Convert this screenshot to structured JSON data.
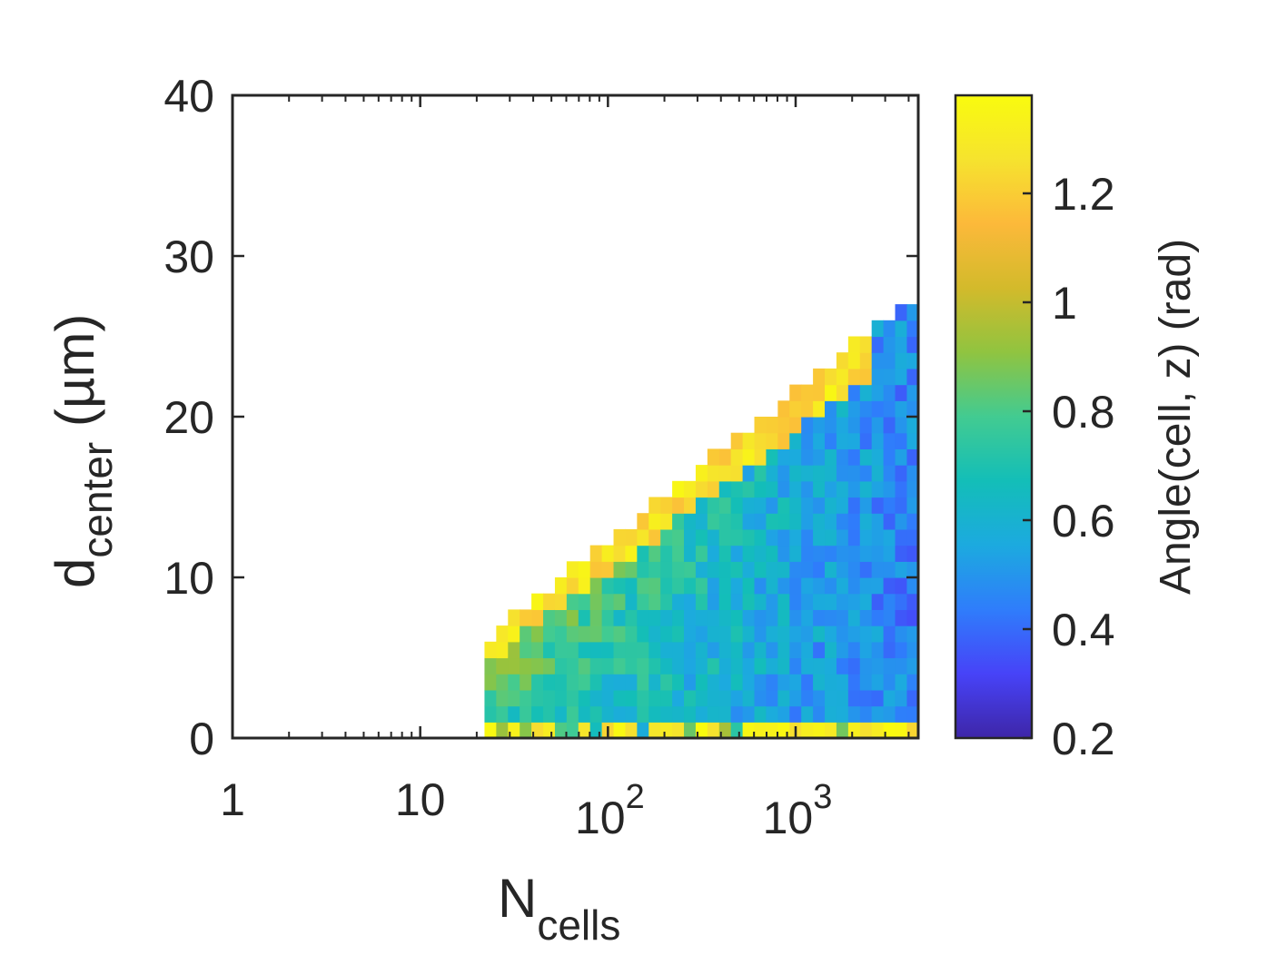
{
  "chart_data": {
    "type": "heatmap",
    "title": "",
    "xlabel": {
      "main": "N",
      "sub": "cells"
    },
    "ylabel": {
      "main": "d",
      "sub": "center",
      "unit": " (µm)"
    },
    "x_scale": "log",
    "xlim": [
      1,
      4500
    ],
    "ylim": [
      0,
      40
    ],
    "x_ticks": [
      {
        "value": 1,
        "base": "1",
        "exp": ""
      },
      {
        "value": 10,
        "base": "10",
        "exp": ""
      },
      {
        "value": 100,
        "base": "10",
        "exp": "2"
      },
      {
        "value": 1000,
        "base": "10",
        "exp": "3"
      }
    ],
    "y_ticks": [
      0,
      10,
      20,
      30,
      40
    ],
    "colorbar": {
      "label": "Angle(cell, z) (rad)",
      "range": [
        0.2,
        1.38
      ],
      "ticks": [
        "0.2",
        "0.4",
        "0.6",
        "0.8",
        "1",
        "1.2"
      ],
      "colormap": [
        "#3e26a8",
        "#4743f8",
        "#2f7dfb",
        "#1caadf",
        "#13beb8",
        "#42cb91",
        "#90c440",
        "#d3ba2b",
        "#fcb93a",
        "#f6e32e",
        "#f9fb0e"
      ]
    },
    "grid": false,
    "bins": {
      "x_bins_per_decade": 16,
      "y_bin_width": 1
    },
    "data_region": {
      "x_min": 22,
      "x_max": 4500,
      "upper_edge_angle_rad": 1.36,
      "interior_angle_rad": [
        0.95,
        0.4
      ]
    }
  }
}
